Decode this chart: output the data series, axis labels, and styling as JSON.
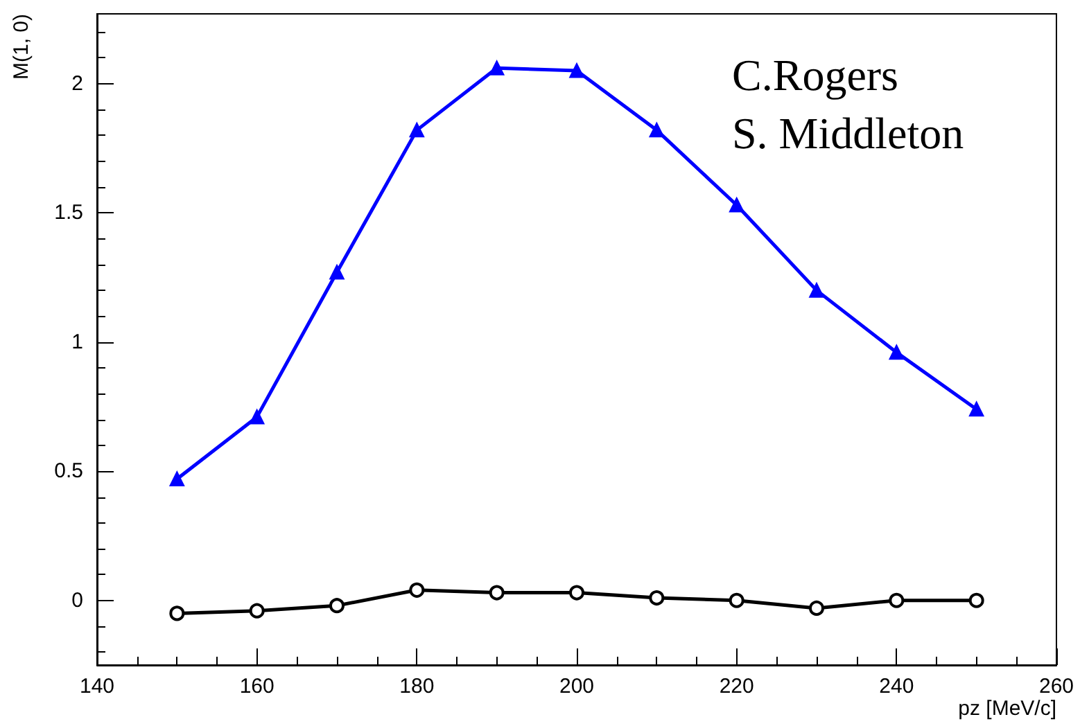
{
  "chart_data": {
    "type": "line",
    "xlabel": "pz [MeV/c]",
    "ylabel": "M(1, 0)",
    "annotations": [
      "C.Rogers",
      "S. Middleton"
    ],
    "x": [
      150,
      160,
      170,
      180,
      190,
      200,
      210,
      220,
      230,
      240,
      250
    ],
    "series": [
      {
        "color": "#0000ff",
        "marker": "triangle",
        "values": [
          0.47,
          0.71,
          1.27,
          1.82,
          2.06,
          2.05,
          1.82,
          1.53,
          1.2,
          0.96,
          0.74
        ]
      },
      {
        "color": "#000000",
        "marker": "circle",
        "values": [
          -0.05,
          -0.04,
          -0.02,
          0.04,
          0.03,
          0.03,
          0.01,
          0.0,
          -0.03,
          0.0,
          0.0
        ]
      }
    ],
    "xlim": [
      140,
      260
    ],
    "xticks": [
      140,
      160,
      180,
      200,
      220,
      240,
      260
    ],
    "ylim": [
      -0.25,
      2.27
    ],
    "yticks": [
      0,
      0.5,
      1,
      1.5,
      2
    ],
    "line_style": "solid"
  }
}
